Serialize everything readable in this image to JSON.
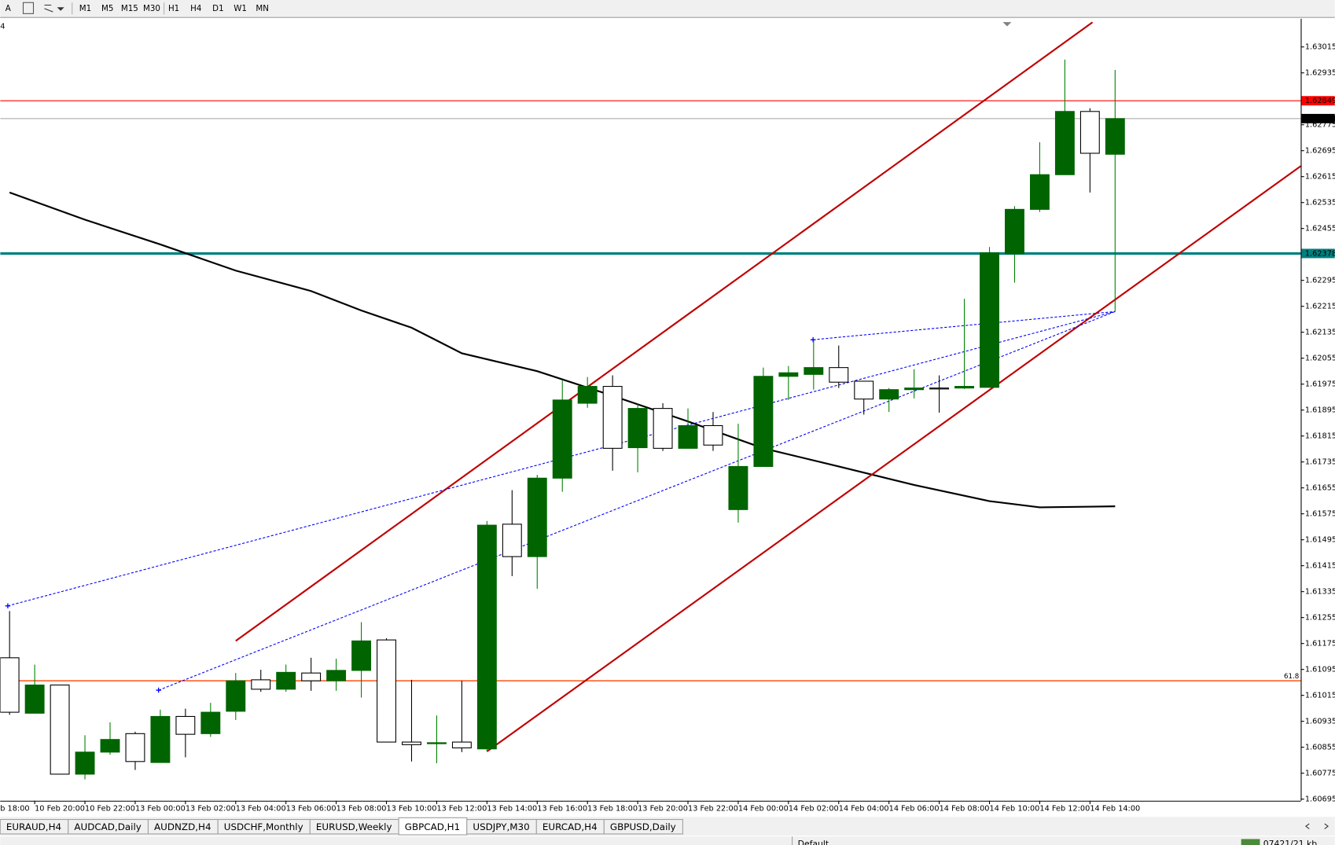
{
  "toolbar": {
    "label": "A",
    "timeframes": [
      "M1",
      "M5",
      "M15",
      "M30",
      "H1",
      "H4",
      "D1",
      "W1",
      "MN"
    ]
  },
  "window_label": "4",
  "tabs": {
    "items": [
      "EURAUD,H4",
      "AUDCAD,Daily",
      "AUDNZD,H4",
      "USDCHF,Monthly",
      "EURUSD,Weekly",
      "GBPCAD,H1",
      "USDJPY,M30",
      "EURCAD,H4",
      "GBPUSD,Daily"
    ],
    "active": 5
  },
  "status": {
    "profile": "Default",
    "traffic": "07421/21 kb"
  },
  "chart_data": {
    "type": "candlestick",
    "categories": [
      "b 18:00",
      null,
      "10 Feb 20:00",
      null,
      "10 Feb 22:00",
      null,
      "13 Feb 00:00",
      null,
      "13 Feb 02:00",
      null,
      "13 Feb 04:00",
      null,
      "13 Feb 06:00",
      null,
      "13 Feb 08:00",
      null,
      "13 Feb 10:00",
      null,
      "13 Feb 12:00",
      null,
      "13 Feb 14:00",
      null,
      "13 Feb 16:00",
      null,
      "13 Feb 18:00",
      null,
      "13 Feb 20:00",
      null,
      "13 Feb 22:00",
      null,
      "14 Feb 00:00",
      null,
      "14 Feb 02:00",
      null,
      "14 Feb 04:00",
      null,
      "14 Feb 06:00",
      null,
      "14 Feb 08:00",
      null,
      "14 Feb 10:00",
      null,
      "14 Feb 12:00",
      null,
      "14 Feb 14:00",
      null
    ],
    "open": [
      null,
      1.61131,
      1.6096,
      1.61047,
      1.60772,
      1.6084,
      1.60897,
      1.60808,
      1.6095,
      1.60897,
      1.60966,
      1.61063,
      1.61034,
      1.61084,
      1.6106,
      1.61092,
      1.61186,
      1.60871,
      1.60866,
      1.60871,
      1.6085,
      1.61543,
      1.61443,
      1.61685,
      1.61916,
      1.61968,
      1.61779,
      1.619,
      1.61777,
      1.61847,
      1.61588,
      1.61721,
      1.61999,
      1.62005,
      1.62026,
      1.61984,
      1.61929,
      1.61958,
      1.61963,
      1.61963,
      1.61965,
      1.62377,
      1.62514,
      1.62621,
      1.62816,
      1.62684
    ],
    "high": [
      null,
      1.61275,
      1.6111,
      1.61047,
      1.60892,
      1.60932,
      1.60903,
      1.60971,
      1.60974,
      1.60992,
      1.61084,
      1.61094,
      1.6111,
      1.61131,
      1.61128,
      1.61241,
      1.61191,
      1.61063,
      1.60953,
      1.6106,
      1.61553,
      1.61648,
      1.61695,
      1.61986,
      1.61997,
      1.62002,
      1.61913,
      1.61916,
      1.619,
      1.61889,
      1.61853,
      1.62026,
      1.62031,
      1.6211,
      1.62094,
      1.61984,
      1.61963,
      1.62021,
      1.62002,
      1.62238,
      1.62398,
      1.62524,
      1.62721,
      1.62976,
      1.62826,
      1.62944
    ],
    "low": [
      null,
      1.60955,
      1.6096,
      1.60772,
      1.60756,
      1.60832,
      1.60785,
      1.60808,
      1.60824,
      1.60887,
      1.60939,
      1.61026,
      1.61026,
      1.61029,
      1.61029,
      1.61008,
      1.60871,
      1.60811,
      1.60806,
      1.6084,
      1.60842,
      1.61383,
      1.61344,
      1.61643,
      1.61902,
      1.61708,
      1.61703,
      1.61769,
      1.61777,
      1.61769,
      1.61548,
      1.61721,
      1.61926,
      1.61958,
      1.61963,
      1.61881,
      1.61889,
      1.61931,
      1.61887,
      1.6196,
      1.61965,
      1.62288,
      1.62506,
      1.62621,
      1.62566,
      1.62199
    ],
    "close": [
      null,
      1.60963,
      1.61047,
      1.60772,
      1.6084,
      1.60879,
      1.60811,
      1.6095,
      1.60895,
      1.60963,
      1.6106,
      1.61034,
      1.61086,
      1.6106,
      1.61092,
      1.61183,
      1.60871,
      1.60863,
      1.60869,
      1.60853,
      1.6154,
      1.61443,
      1.61685,
      1.61926,
      1.61968,
      1.61777,
      1.619,
      1.61777,
      1.61847,
      1.61787,
      1.61721,
      1.61999,
      1.6201,
      1.62026,
      1.61981,
      1.61929,
      1.61958,
      1.61963,
      1.6196,
      1.61968,
      1.6238,
      1.62514,
      1.62621,
      1.62816,
      1.62687,
      1.62794
    ],
    "up_color": "#006400",
    "down_color": "#ffffff",
    "wick_up_color": "#008000",
    "wick_down_color": "#000000",
    "ylim": [
      1.6069,
      1.63102
    ],
    "yticks": [
      1.63015,
      1.62935,
      1.62775,
      1.62695,
      1.62615,
      1.62535,
      1.62455,
      1.62295,
      1.62215,
      1.62135,
      1.62055,
      1.61975,
      1.61895,
      1.61815,
      1.61735,
      1.61655,
      1.61575,
      1.61495,
      1.61415,
      1.61335,
      1.61255,
      1.61175,
      1.61095,
      1.61015,
      1.60935,
      1.60855,
      1.60775,
      1.60695
    ],
    "moving_average": {
      "color": "#000000",
      "x": [
        1,
        4,
        7,
        10,
        13,
        15,
        17,
        19,
        22,
        25,
        28,
        31,
        34,
        37,
        40,
        42,
        45
      ],
      "values": [
        1.62566,
        1.62482,
        1.62406,
        1.62325,
        1.62262,
        1.62202,
        1.62149,
        1.6207,
        1.62015,
        1.61939,
        1.6186,
        1.61777,
        1.61721,
        1.61664,
        1.61614,
        1.61595,
        1.61598
      ]
    },
    "levels": [
      {
        "value": 1.62849,
        "color": "#ff0000",
        "label_color": "#ff0000"
      },
      {
        "value": 1.62794,
        "color": "#a0a0a0",
        "label_color": "#000000"
      },
      {
        "value": 1.62378,
        "color": "#008080",
        "label_color": "#008080",
        "bold": true
      }
    ],
    "fib_levels": [
      {
        "ratio": 61.8,
        "value": 1.6106,
        "color": "#ff4500"
      }
    ],
    "channel": {
      "color": "#c00000",
      "lines": [
        {
          "x": [
            10,
            44.1
          ],
          "values": [
            1.61183,
            1.63091
          ]
        },
        {
          "x": [
            20,
            52.4
          ],
          "values": [
            1.60842,
            1.62648
          ]
        }
      ]
    },
    "projections": {
      "color": "#0000ff",
      "lines": [
        {
          "x": [
            0.93,
            45
          ],
          "values": [
            1.61291,
            1.62199
          ]
        },
        {
          "x": [
            6.93,
            45
          ],
          "values": [
            1.61031,
            1.62199
          ]
        },
        {
          "x": [
            32.98,
            45
          ],
          "values": [
            1.62112,
            1.62199
          ]
        }
      ]
    }
  }
}
